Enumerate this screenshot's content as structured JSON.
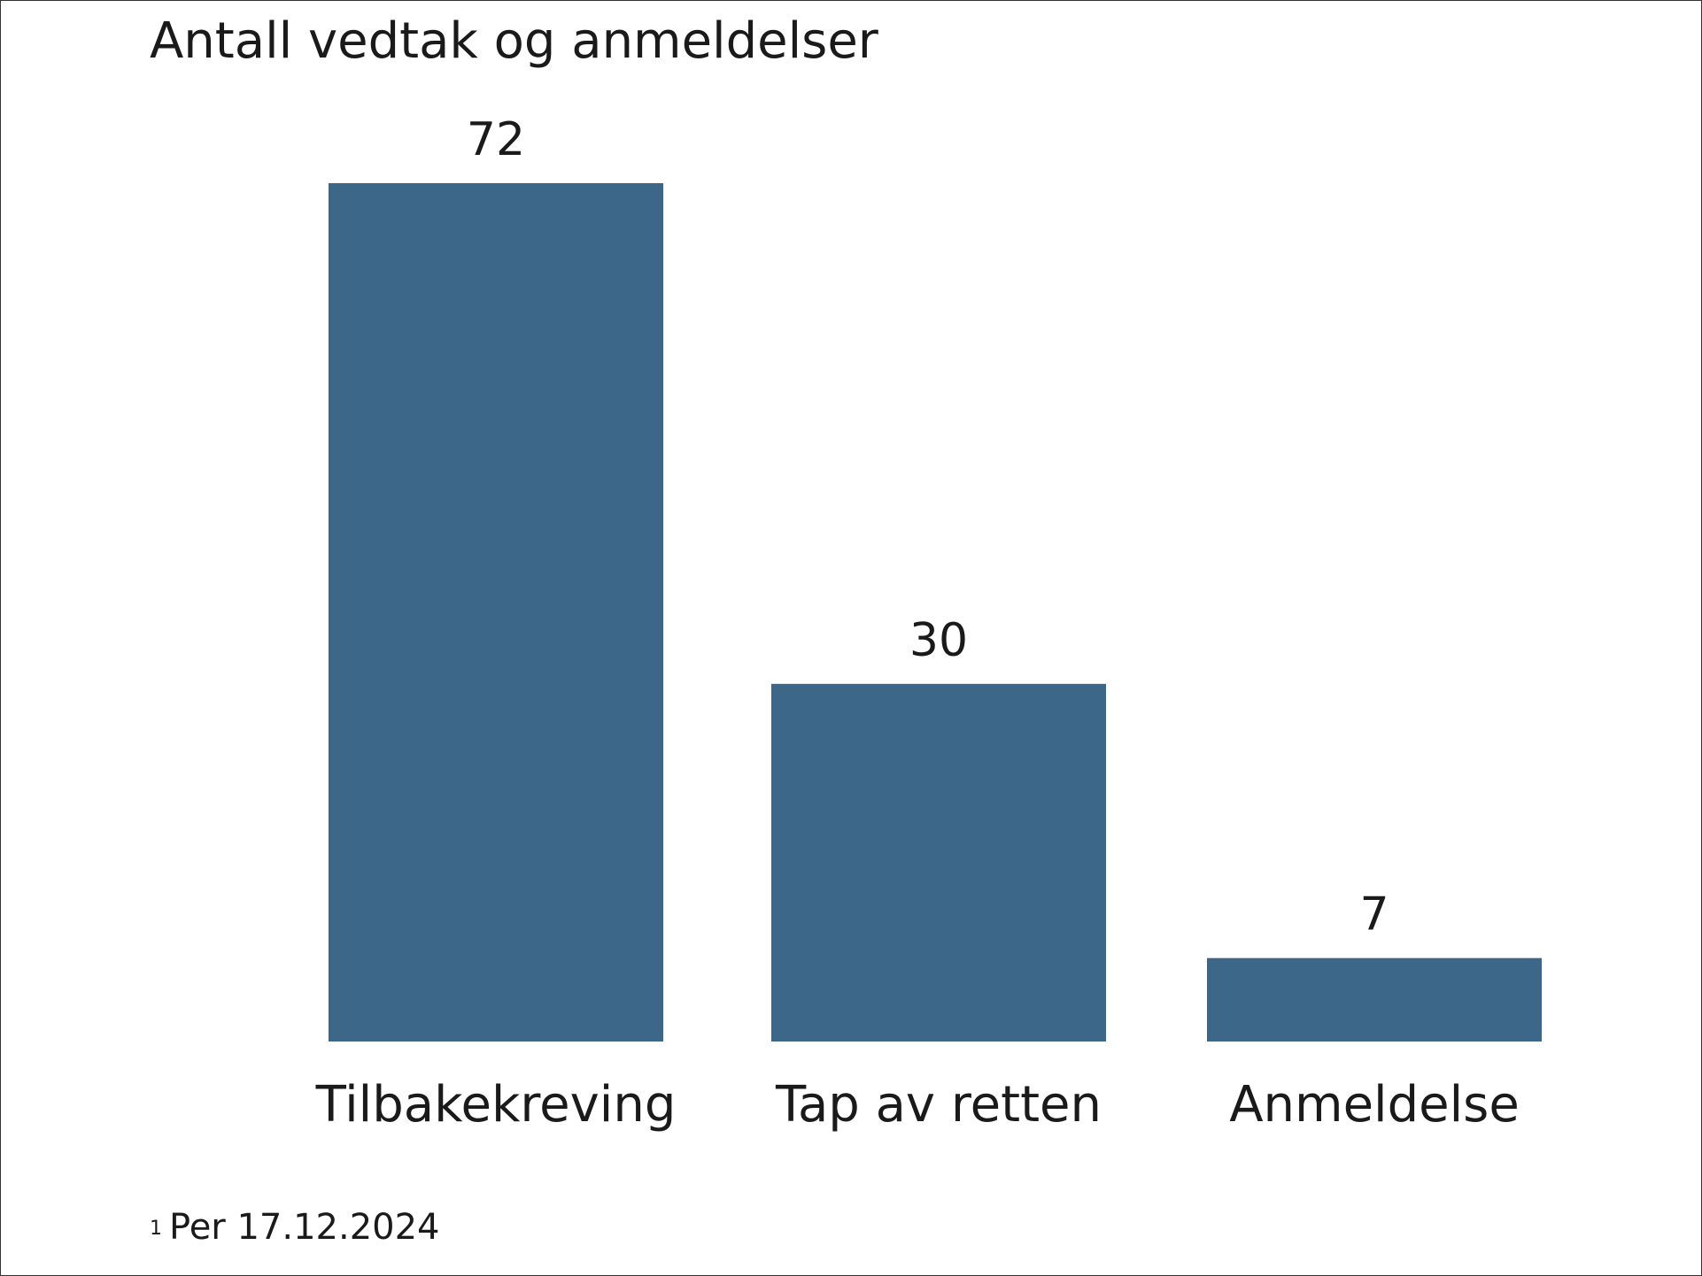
{
  "chart_data": {
    "type": "bar",
    "title": "Antall vedtak og anmeldelser",
    "categories": [
      "Tilbakekreving",
      "Tap av retten",
      "Anmeldelse"
    ],
    "values": [
      72,
      30,
      7
    ],
    "data_labels": [
      "72",
      "30",
      "7"
    ],
    "ylim": [
      0,
      72
    ],
    "xlabel": "",
    "ylabel": "",
    "grid": false,
    "colors": {
      "bar": "#3d6789"
    },
    "footnote": {
      "mark": "1",
      "text": "Per 17.12.2024"
    }
  }
}
